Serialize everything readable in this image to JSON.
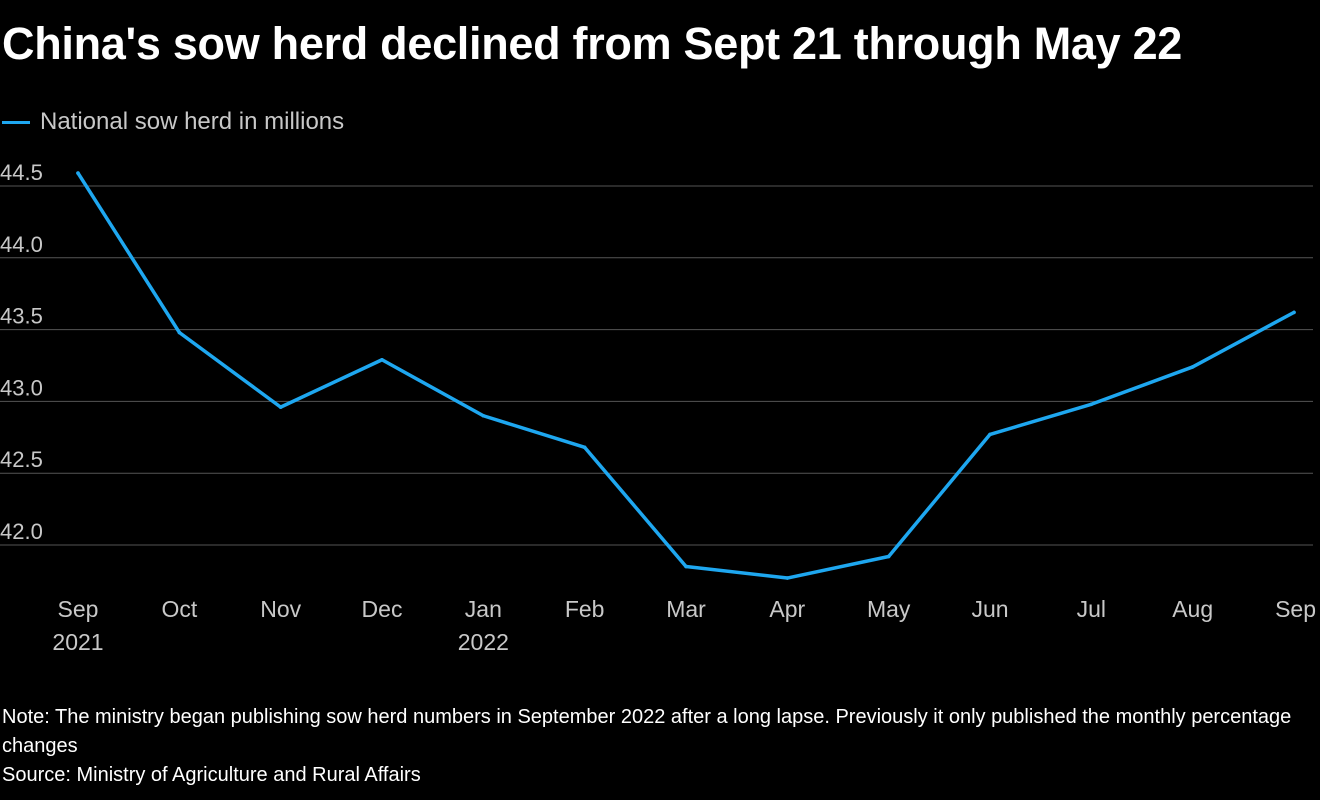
{
  "header": {
    "title": "China's sow herd declined from Sept 21 through May 22"
  },
  "legend": {
    "label": "National sow herd in millions"
  },
  "footer": {
    "note": "Note: The ministry began publishing sow herd numbers in September 2022 after a long lapse. Previously it only published the monthly percentage changes",
    "source": "Source: Ministry of Agriculture and Rural Affairs"
  },
  "colors": {
    "background": "#000000",
    "line": "#1ea7f0",
    "grid": "#555555",
    "axis_text": "#c8c8c8"
  },
  "chart_data": {
    "type": "line",
    "title": "China's sow herd declined from Sept 21 through May 22",
    "xlabel": "",
    "ylabel": "",
    "categories": [
      "Sep",
      "Oct",
      "Nov",
      "Dec",
      "Jan",
      "Feb",
      "Mar",
      "Apr",
      "May",
      "Jun",
      "Jul",
      "Aug",
      "Sep"
    ],
    "category_sublabels": [
      "2021",
      "",
      "",
      "",
      "2022",
      "",
      "",
      "",
      "",
      "",
      "",
      "",
      ""
    ],
    "series": [
      {
        "name": "National sow herd in millions",
        "values": [
          44.59,
          43.48,
          42.96,
          43.29,
          42.9,
          42.68,
          41.85,
          41.77,
          41.92,
          42.77,
          42.98,
          43.24,
          43.62
        ]
      }
    ],
    "ylim": [
      41.5,
      44.75
    ],
    "yticks": [
      42.0,
      42.5,
      43.0,
      43.5,
      44.0,
      44.5
    ],
    "ytick_labels": [
      "42.0",
      "42.5",
      "43.0",
      "43.5",
      "44.0",
      "44.5"
    ],
    "grid": true,
    "legend_position": "top-left"
  }
}
